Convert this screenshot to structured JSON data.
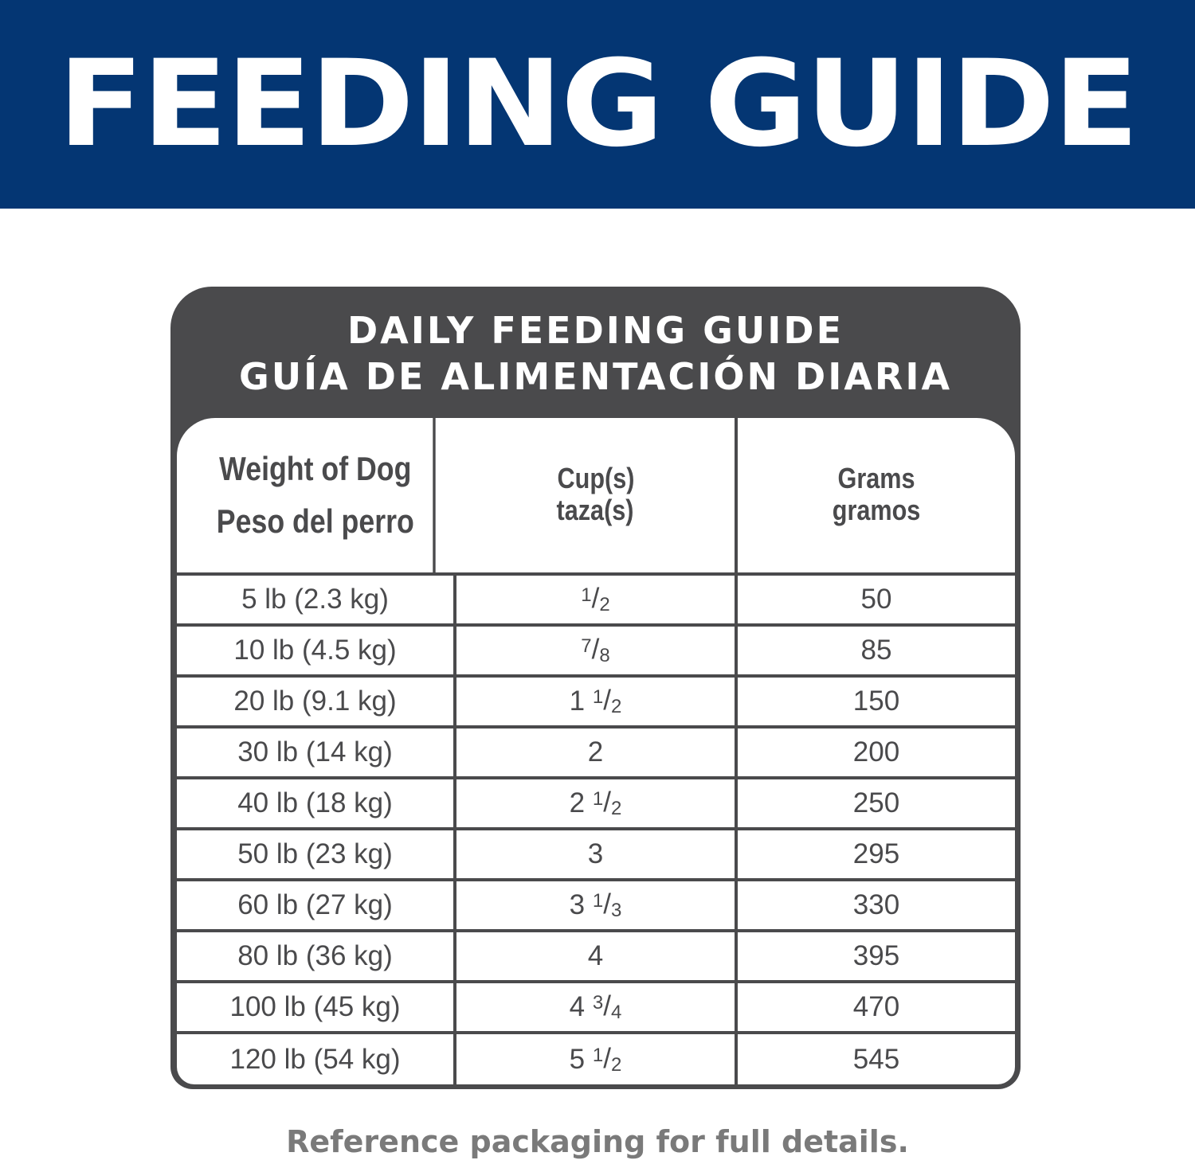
{
  "banner": {
    "title": "FEEDING GUIDE",
    "color": "#043673"
  },
  "card": {
    "title_en": "DAILY FEEDING GUIDE",
    "title_es": "GUÍA DE ALIMENTACIÓN DIARIA",
    "color": "#4a4a4c"
  },
  "table": {
    "headers": [
      {
        "en": "Weight of Dog",
        "es": "Peso del perro"
      },
      {
        "en": "Cup(s)",
        "es": "taza(s)"
      },
      {
        "en": "Grams",
        "es": "gramos"
      }
    ],
    "rows": [
      {
        "weight": "5 lb (2.3 kg)",
        "cups": {
          "whole": "",
          "num": "1",
          "den": "2"
        },
        "grams": "50"
      },
      {
        "weight": "10 lb (4.5 kg)",
        "cups": {
          "whole": "",
          "num": "7",
          "den": "8"
        },
        "grams": "85"
      },
      {
        "weight": "20 lb (9.1 kg)",
        "cups": {
          "whole": "1",
          "num": "1",
          "den": "2"
        },
        "grams": "150"
      },
      {
        "weight": "30 lb (14 kg)",
        "cups": {
          "whole": "2",
          "num": "",
          "den": ""
        },
        "grams": "200"
      },
      {
        "weight": "40 lb (18 kg)",
        "cups": {
          "whole": "2",
          "num": "1",
          "den": "2"
        },
        "grams": "250"
      },
      {
        "weight": "50 lb (23 kg)",
        "cups": {
          "whole": "3",
          "num": "",
          "den": ""
        },
        "grams": "295"
      },
      {
        "weight": "60 lb (27 kg)",
        "cups": {
          "whole": "3",
          "num": "1",
          "den": "3"
        },
        "grams": "330"
      },
      {
        "weight": "80 lb (36 kg)",
        "cups": {
          "whole": "4",
          "num": "",
          "den": ""
        },
        "grams": "395"
      },
      {
        "weight": "100 lb (45 kg)",
        "cups": {
          "whole": "4",
          "num": "3",
          "den": "4"
        },
        "grams": "470"
      },
      {
        "weight": "120 lb (54 kg)",
        "cups": {
          "whole": "5",
          "num": "1",
          "den": "2"
        },
        "grams": "545"
      }
    ]
  },
  "footer": "Reference packaging for full details."
}
